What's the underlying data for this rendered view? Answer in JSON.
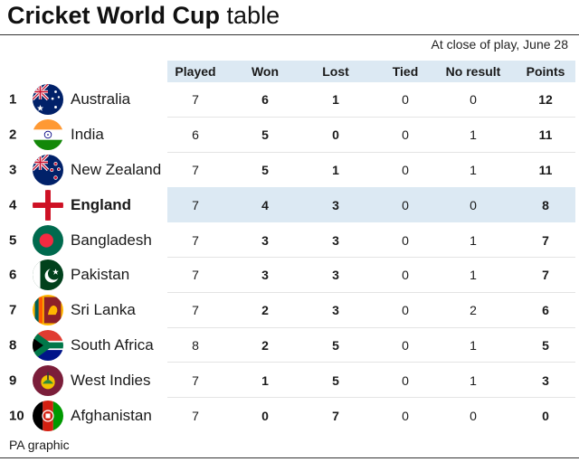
{
  "title": {
    "bold": "Cricket World Cup",
    "light": "table"
  },
  "subtitle": "At close of play, June 28",
  "columns": [
    "Played",
    "Won",
    "Lost",
    "Tied",
    "No result",
    "Points"
  ],
  "rows": [
    {
      "rank": "1",
      "team": "Australia",
      "flag": "australia-flag-icon",
      "played": "7",
      "won": "6",
      "lost": "1",
      "tied": "0",
      "no_result": "0",
      "points": "12"
    },
    {
      "rank": "2",
      "team": "India",
      "flag": "india-flag-icon",
      "played": "6",
      "won": "5",
      "lost": "0",
      "tied": "0",
      "no_result": "1",
      "points": "11"
    },
    {
      "rank": "3",
      "team": "New Zealand",
      "flag": "new-zealand-flag-icon",
      "played": "7",
      "won": "5",
      "lost": "1",
      "tied": "0",
      "no_result": "1",
      "points": "11"
    },
    {
      "rank": "4",
      "team": "England",
      "flag": "england-flag-icon",
      "played": "7",
      "won": "4",
      "lost": "3",
      "tied": "0",
      "no_result": "0",
      "points": "8",
      "highlight": true
    },
    {
      "rank": "5",
      "team": "Bangladesh",
      "flag": "bangladesh-flag-icon",
      "played": "7",
      "won": "3",
      "lost": "3",
      "tied": "0",
      "no_result": "1",
      "points": "7"
    },
    {
      "rank": "6",
      "team": "Pakistan",
      "flag": "pakistan-flag-icon",
      "played": "7",
      "won": "3",
      "lost": "3",
      "tied": "0",
      "no_result": "1",
      "points": "7"
    },
    {
      "rank": "7",
      "team": "Sri Lanka",
      "flag": "sri-lanka-flag-icon",
      "played": "7",
      "won": "2",
      "lost": "3",
      "tied": "0",
      "no_result": "2",
      "points": "6"
    },
    {
      "rank": "8",
      "team": "South Africa",
      "flag": "south-africa-flag-icon",
      "played": "8",
      "won": "2",
      "lost": "5",
      "tied": "0",
      "no_result": "1",
      "points": "5"
    },
    {
      "rank": "9",
      "team": "West Indies",
      "flag": "west-indies-flag-icon",
      "played": "7",
      "won": "1",
      "lost": "5",
      "tied": "0",
      "no_result": "1",
      "points": "3"
    },
    {
      "rank": "10",
      "team": "Afghanistan",
      "flag": "afghanistan-flag-icon",
      "played": "7",
      "won": "0",
      "lost": "7",
      "tied": "0",
      "no_result": "0",
      "points": "0"
    }
  ],
  "footer": "PA graphic",
  "colors": {
    "header_bg": "#dce9f3",
    "highlight_bg": "#dce9f3"
  }
}
